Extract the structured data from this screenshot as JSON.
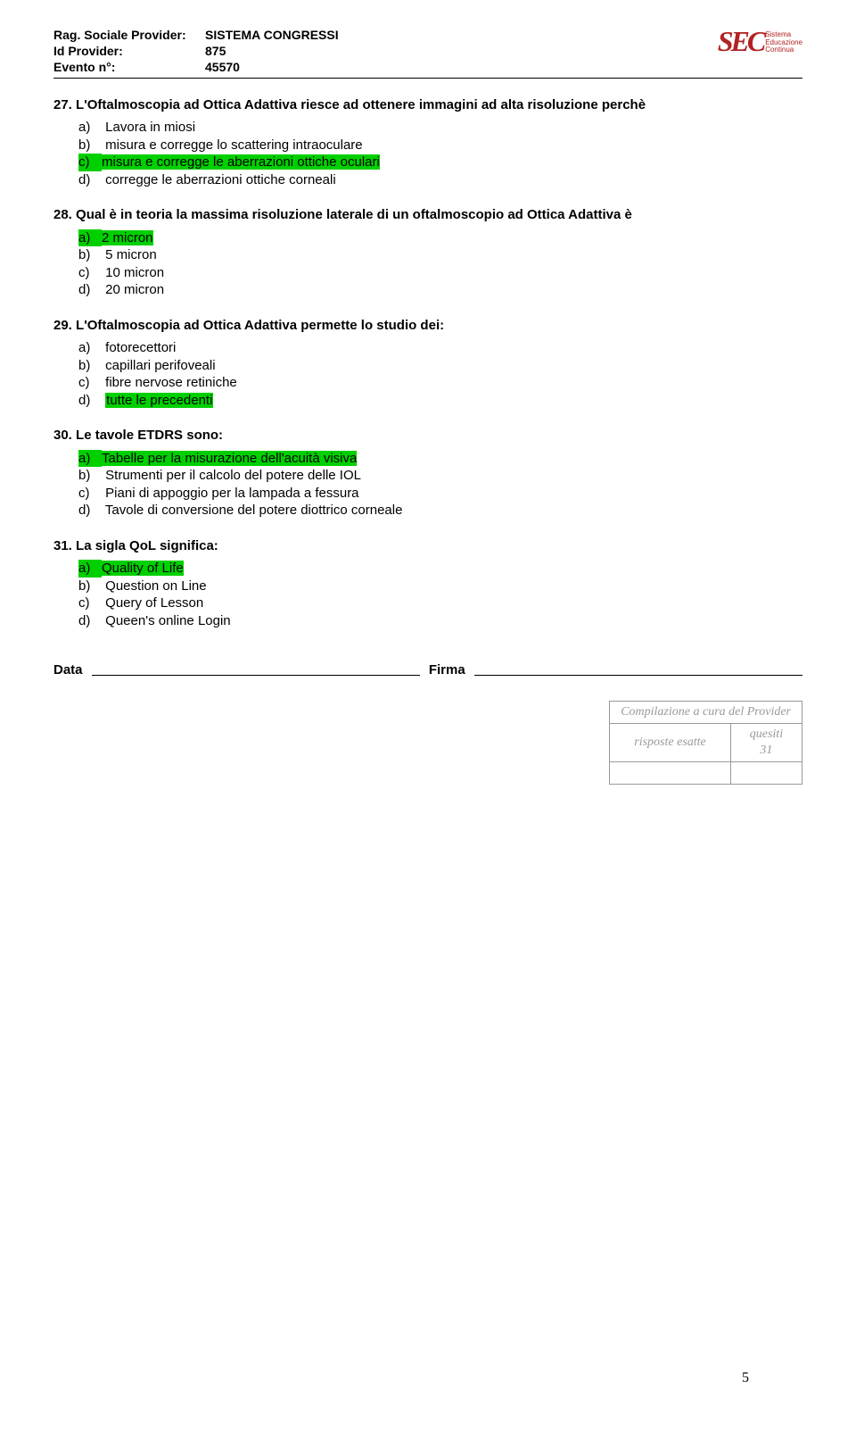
{
  "header": {
    "provider_label": "Rag. Sociale Provider:",
    "provider_value": "SISTEMA CONGRESSI",
    "id_label": "Id Provider:",
    "id_value": "875",
    "event_label": "Evento n°:",
    "event_value": "45570"
  },
  "logo": {
    "text": "SEC",
    "sub1": "Sistema",
    "sub2": "Educazione",
    "sub3": "Continua",
    "sec_color": "#b22222"
  },
  "questions": [
    {
      "num": "27.",
      "text": "L'Oftalmoscopia ad Ottica Adattiva riesce ad ottenere immagini ad alta risoluzione perchè",
      "options": [
        {
          "l": "a)",
          "t": "Lavora in miosi",
          "hl": false
        },
        {
          "l": "b)",
          "t": "misura  e corregge lo scattering intraoculare",
          "hl": false
        },
        {
          "l": "c)",
          "t": "misura e corregge le aberrazioni ottiche oculari",
          "hl": true
        },
        {
          "l": "d)",
          "t": "corregge le aberrazioni ottiche corneali",
          "hl": false
        }
      ]
    },
    {
      "num": "28.",
      "text": "Qual è in teoria la massima risoluzione laterale di un oftalmoscopio ad Ottica Adattiva è",
      "options": [
        {
          "l": "a)",
          "t": "2 micron",
          "hl": true
        },
        {
          "l": "b)",
          "t": "5 micron",
          "hl": false
        },
        {
          "l": "c)",
          "t": "10 micron",
          "hl": false
        },
        {
          "l": "d)",
          "t": "20 micron",
          "hl": false
        }
      ]
    },
    {
      "num": "29.",
      "text": "L'Oftalmoscopia ad Ottica Adattiva permette lo studio dei:",
      "options": [
        {
          "l": "a)",
          "t": "fotorecettori",
          "hl": false
        },
        {
          "l": "b)",
          "t": "capillari perifoveali",
          "hl": false
        },
        {
          "l": "c)",
          "t": "fibre nervose retiniche",
          "hl": false
        },
        {
          "l": "d)",
          "t": "tutte le precedenti",
          "hl": true,
          "textOnly": true
        }
      ]
    },
    {
      "num": "30.",
      "text": "Le tavole ETDRS sono:",
      "options": [
        {
          "l": "a)",
          "t": "Tabelle per la misurazione dell'acuità visiva",
          "hl": true
        },
        {
          "l": "b)",
          "t": "Strumenti per il calcolo del potere delle IOL",
          "hl": false
        },
        {
          "l": "c)",
          "t": "Piani di appoggio per la lampada a fessura",
          "hl": false
        },
        {
          "l": "d)",
          "t": "Tavole di conversione del potere diottrico corneale",
          "hl": false
        }
      ]
    },
    {
      "num": "31.",
      "text": "La sigla QoL significa:",
      "options": [
        {
          "l": "a)",
          "t": "Quality of Life",
          "hl": true
        },
        {
          "l": "b)",
          "t": "Question on Line",
          "hl": false
        },
        {
          "l": "c)",
          "t": "Query of Lesson",
          "hl": false
        },
        {
          "l": "d)",
          "t": "Queen's online Login",
          "hl": false
        }
      ]
    }
  ],
  "signature": {
    "data": "Data",
    "firma": "Firma"
  },
  "provider_table": {
    "caption": "Compilazione a cura del Provider",
    "col1": "risposte esatte",
    "col2": "quesiti",
    "val2": "31"
  },
  "page_number": "5",
  "colors": {
    "highlight": "#00d000"
  }
}
